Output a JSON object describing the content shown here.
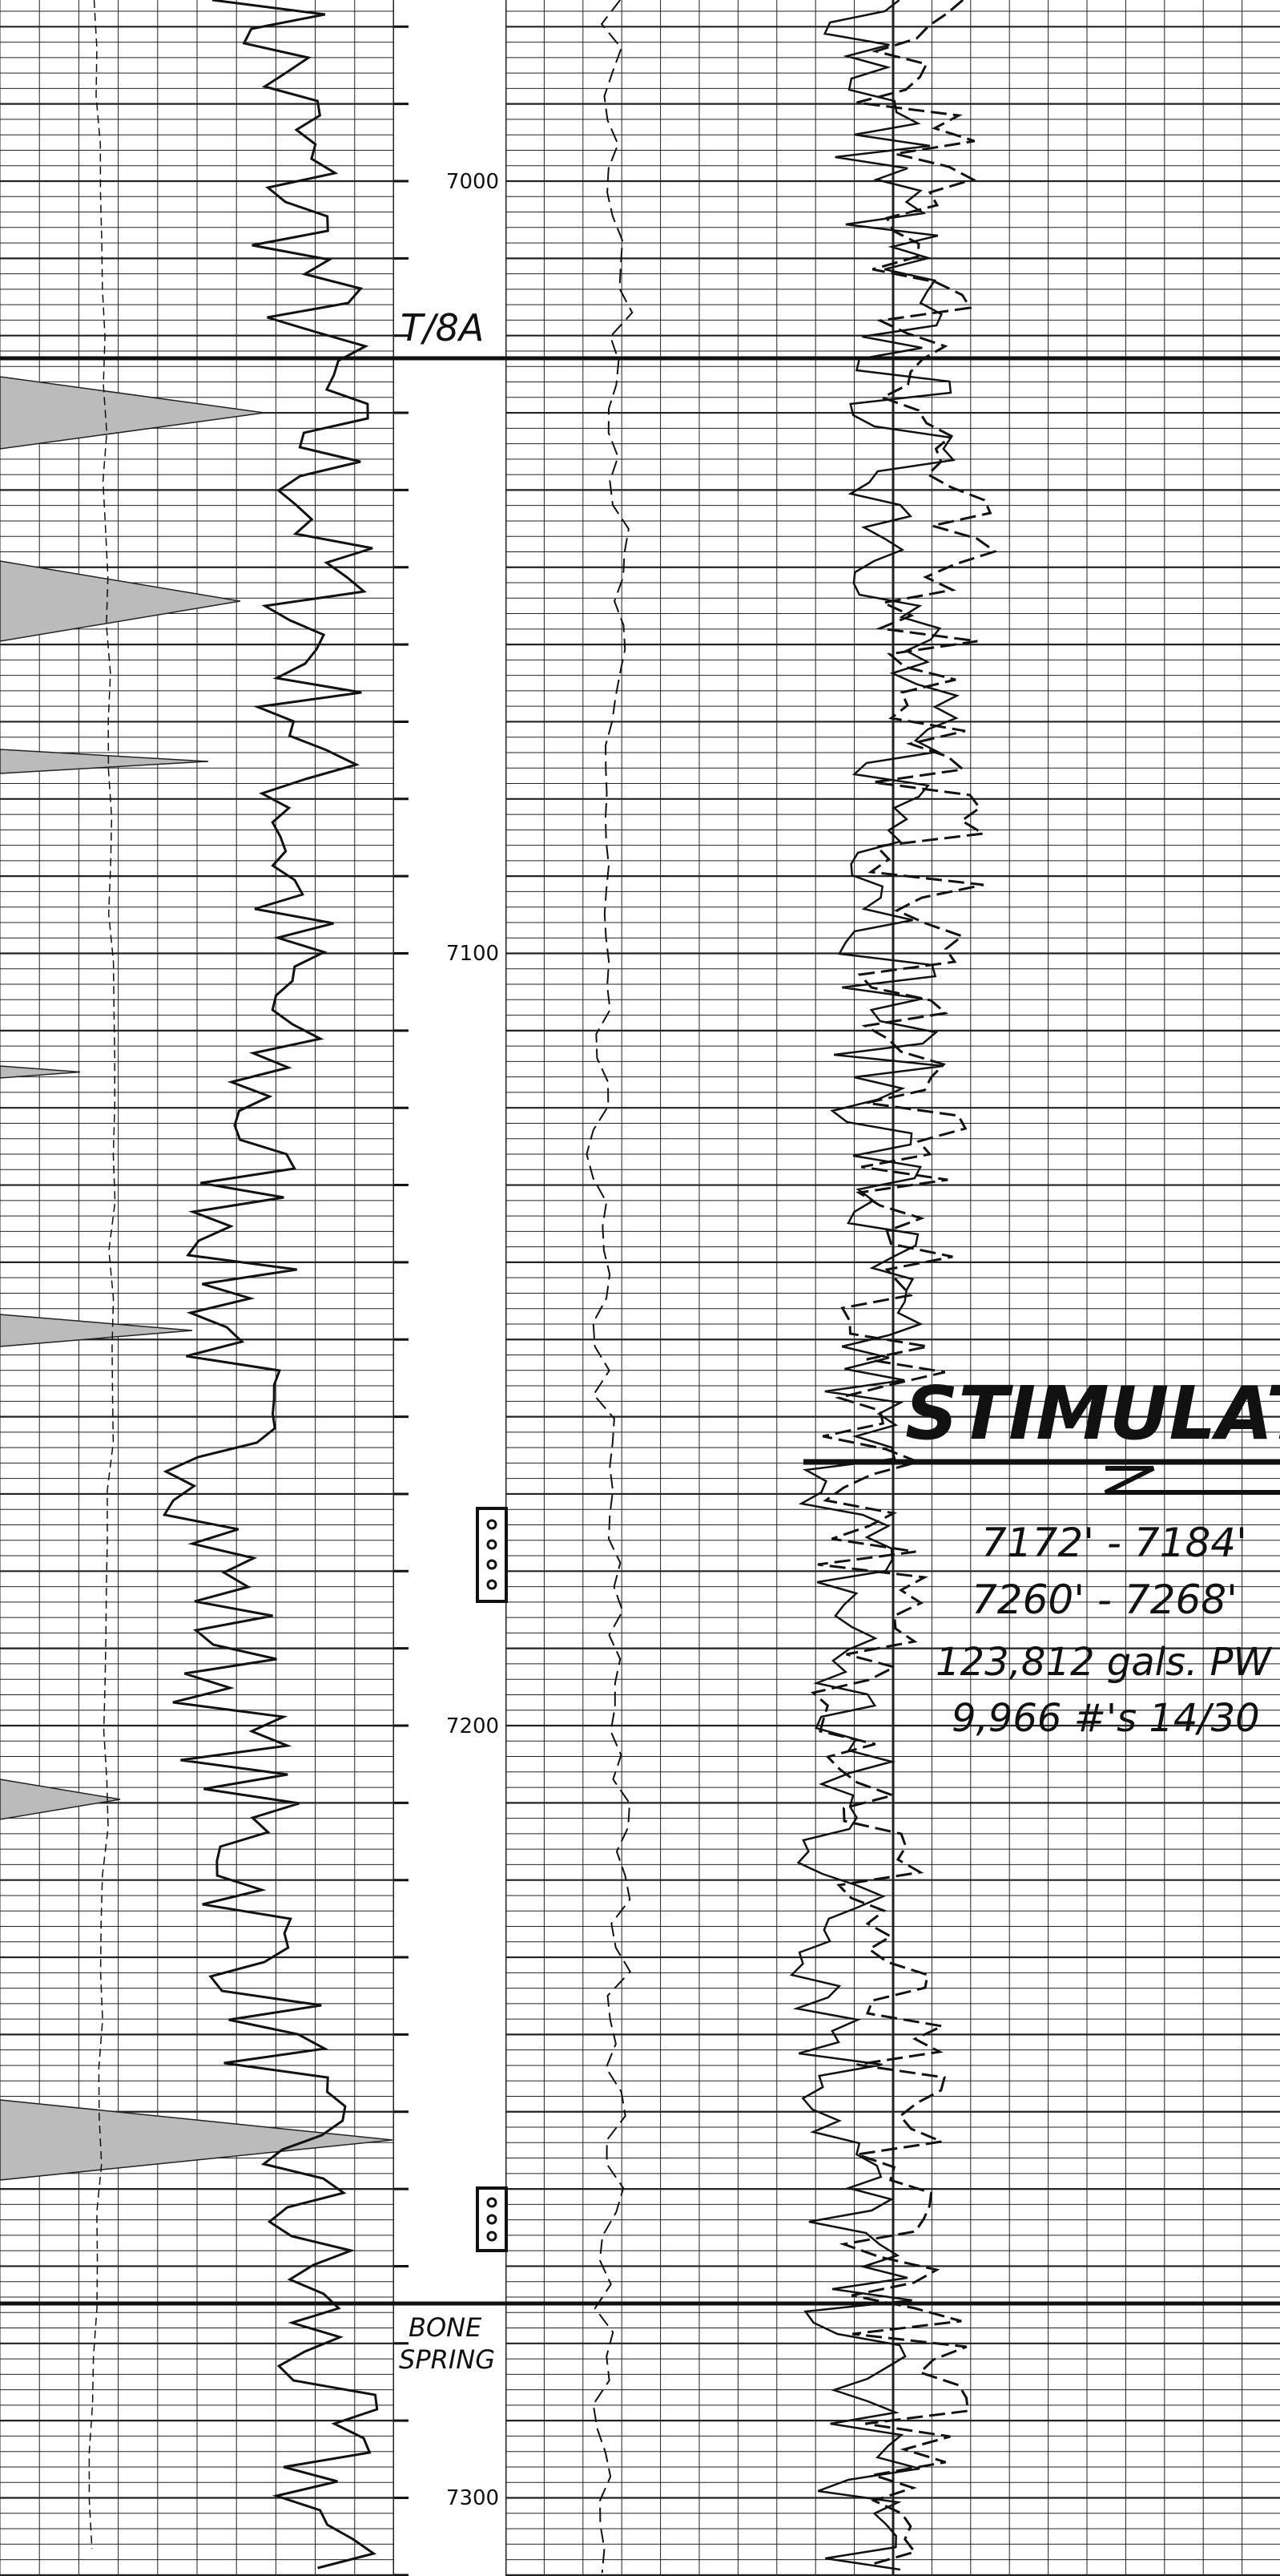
{
  "depth_labels": [
    "7000",
    "7100",
    "7200",
    "7300"
  ],
  "formations": [
    {
      "label": [
        "T/8A"
      ]
    },
    {
      "label": [
        "BONE",
        "SPRING"
      ]
    }
  ],
  "stimulation": {
    "title": "STIMULATIO",
    "lines": [
      "7172' - 7184'",
      "7260' - 7268'",
      "123,812 gals. PW",
      "9,966 #'s 14/30"
    ]
  }
}
